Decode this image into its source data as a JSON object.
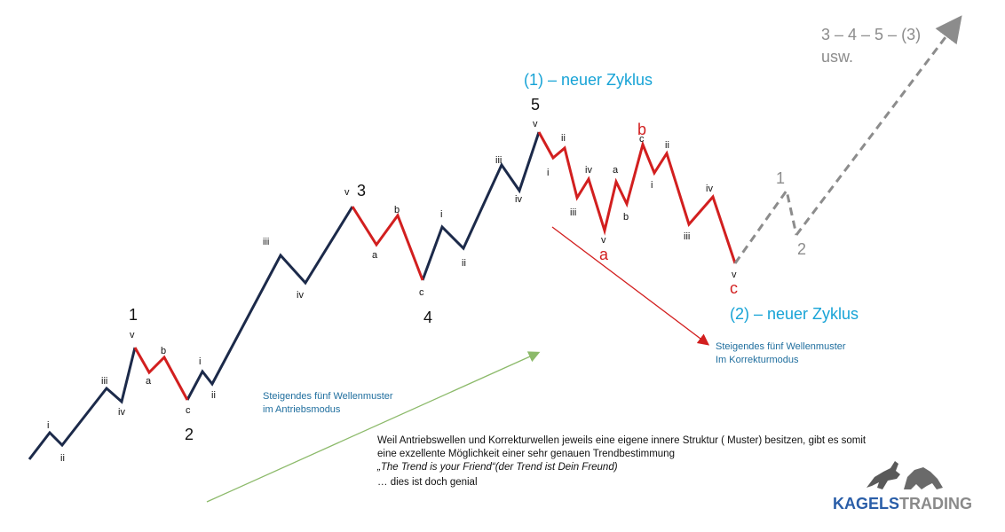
{
  "wave_labels": {
    "primary": [
      "1",
      "2",
      "3",
      "4",
      "5"
    ],
    "minor_1": [
      "i",
      "ii",
      "iii",
      "iv",
      "v"
    ],
    "corr_1": [
      "a",
      "b",
      "c"
    ],
    "minor_2": [
      "i",
      "ii"
    ],
    "minor_3": [
      "iii",
      "iv",
      "v"
    ],
    "corr_3": [
      "a",
      "b",
      "c"
    ],
    "minor_5": [
      "i",
      "ii",
      "iii",
      "iv",
      "v"
    ],
    "corr_big": [
      "a",
      "b",
      "c"
    ],
    "corr_minor_a": [
      "i",
      "ii",
      "iii",
      "iv",
      "v"
    ],
    "corr_minor_b": [
      "a",
      "b",
      "c"
    ],
    "corr_minor_c": [
      "i",
      "ii",
      "iii",
      "iv",
      "v"
    ],
    "future": [
      "1",
      "2"
    ]
  },
  "cycle_1_label": "(1) – neuer Zyklus",
  "cycle_2_label": "(2) – neuer Zyklus",
  "future_text": [
    "3 – 4 – 5 – (3)",
    "usw."
  ],
  "caption_impulse": [
    "Steigendes fünf Wellenmuster",
    "im Antriebsmodus"
  ],
  "caption_correction": [
    "Steigendes fünf Wellenmuster",
    "Im Korrekturmodus"
  ],
  "body_text": {
    "line1": "Weil Antriebswellen und Korrekturwellen jeweils eine eigene innere Struktur ( Muster) besitzen, gibt es somit",
    "line2": "eine exzellente Möglichkeit einer sehr genauen Trendbestimmung",
    "line3_quote": "„The Trend is your Friend“",
    "line3_note": "(der Trend ist Dein Freund)",
    "line4": "… dies ist doch genial"
  },
  "logo": {
    "part1": "KAGELS",
    "part2": "TRADING"
  },
  "colors": {
    "impulse": "#1c2a4a",
    "correction": "#d21f1f",
    "future": "#8c8c8c",
    "cycle": "#17a3d6",
    "caption": "#1f6e9e",
    "arrow_green": "#8cba6a",
    "arrow_red": "#d21f1f"
  }
}
